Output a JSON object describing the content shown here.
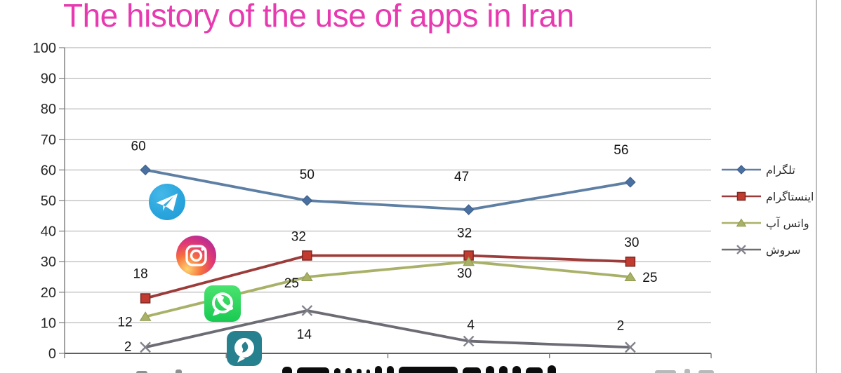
{
  "title": {
    "text": "The history of the use of apps in Iran",
    "color": "#e83ab0"
  },
  "chart_data": {
    "type": "line",
    "categories": [
      "",
      "",
      "",
      ""
    ],
    "x_labels_visible": false,
    "ylim": [
      0,
      100
    ],
    "ytick_step": 10,
    "grid": true,
    "legend_position": "right",
    "data_labels_visible": true,
    "series": [
      {
        "name": "تلگرام",
        "name_en": "Telegram",
        "marker": "diamond",
        "color": "#5e7fa4",
        "marker_color": "#4a70a2",
        "marker_edge": "#3d5d85",
        "values": [
          60,
          50,
          47,
          56
        ]
      },
      {
        "name": "اینستاگرام",
        "name_en": "Instagram",
        "marker": "square",
        "color": "#9c3c3a",
        "marker_color": "#c23b30",
        "marker_edge": "#7c2822",
        "values": [
          18,
          32,
          32,
          30
        ]
      },
      {
        "name": "واتس آپ",
        "name_en": "WhatsApp",
        "marker": "triangle",
        "color": "#a9b168",
        "marker_color": "#a9b168",
        "marker_edge": "#8e9a4b",
        "values": [
          12,
          25,
          30,
          25
        ]
      },
      {
        "name": "سروش",
        "name_en": "Soroush",
        "marker": "x",
        "color": "#6c6c75",
        "marker_color": "#82828c",
        "marker_edge": "#82828c",
        "values": [
          2,
          14,
          4,
          2
        ]
      }
    ],
    "label_offsets": [
      [
        [
          -10,
          -35
        ],
        [
          0,
          -38
        ],
        [
          -10,
          -48
        ],
        [
          -13,
          -47
        ]
      ],
      [
        [
          -7,
          -36
        ],
        [
          -12,
          -28
        ],
        [
          -6,
          -33
        ],
        [
          2,
          -28
        ]
      ],
      [
        [
          -29,
          7
        ],
        [
          -22,
          8
        ],
        [
          -6,
          16
        ],
        [
          28,
          0
        ]
      ],
      [
        [
          -25,
          -2
        ],
        [
          -4,
          33
        ],
        [
          3,
          -24
        ],
        [
          -14,
          -32
        ]
      ]
    ]
  },
  "overlay_icons": [
    "telegram-app-icon",
    "instagram-app-icon",
    "whatsapp-app-icon",
    "soroush-app-icon"
  ],
  "colors": {
    "background": "#ffffff",
    "gridline": "#a9a9a9",
    "axis": "#7a7a7a",
    "x_axis": "#5f5f5f",
    "tick_label": "#262626",
    "label_text": "#141414",
    "legend_text": "#2e2e2e"
  }
}
